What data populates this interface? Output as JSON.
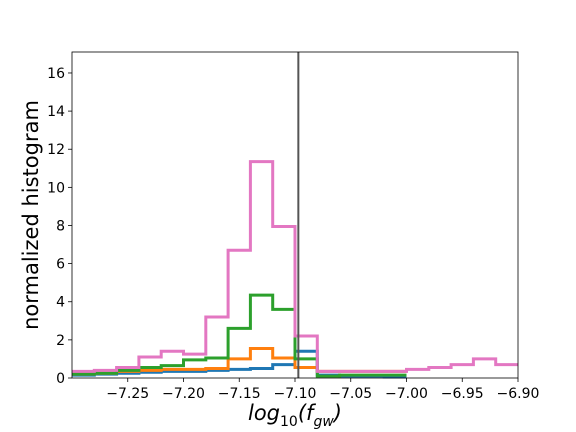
{
  "chart_data": {
    "type": "histogram-step",
    "title": "",
    "xlabel": "log",
    "xlabel_subscript": "10",
    "xlabel_argument_open": "(f",
    "xlabel_argument_subscript": "gw",
    "xlabel_argument_close": ")",
    "ylabel": "normalized histogram",
    "xlim": [
      -7.3,
      -6.9
    ],
    "ylim": [
      0,
      17.1
    ],
    "xticks": [
      -7.25,
      -7.2,
      -7.15,
      -7.1,
      -7.05,
      -7.0,
      -6.95,
      -6.9
    ],
    "xtick_labels": [
      "−7.25",
      "−7.20",
      "−7.15",
      "−7.10",
      "−7.05",
      "−7.00",
      "−6.95",
      "−6.90"
    ],
    "yticks": [
      0,
      2,
      4,
      6,
      8,
      10,
      12,
      14,
      16
    ],
    "ytick_labels": [
      "0",
      "2",
      "4",
      "6",
      "8",
      "10",
      "12",
      "14",
      "16"
    ],
    "vline": {
      "x": -7.097,
      "color": "#555555"
    },
    "grid": false,
    "legend": "none",
    "series": [
      {
        "color": "#1f77b4",
        "edges": [
          -7.3,
          -7.28,
          -7.26,
          -7.24,
          -7.22,
          -7.2,
          -7.18,
          -7.16,
          -7.14,
          -7.12,
          -7.1,
          -7.08,
          -7.06,
          -7.04,
          -7.02,
          -7.0
        ],
        "values": [
          0.15,
          0.2,
          0.25,
          0.3,
          0.35,
          0.35,
          0.4,
          0.45,
          0.5,
          0.7,
          1.4,
          0.15,
          0.1,
          0.1,
          0.05
        ]
      },
      {
        "color": "#ff7f0e",
        "edges": [
          -7.3,
          -7.28,
          -7.26,
          -7.24,
          -7.22,
          -7.2,
          -7.18,
          -7.16,
          -7.14,
          -7.12,
          -7.1,
          -7.08,
          -7.06,
          -7.04,
          -7.02,
          -7.0
        ],
        "values": [
          0.2,
          0.25,
          0.35,
          0.4,
          0.45,
          0.45,
          0.5,
          1.0,
          1.55,
          1.05,
          0.55,
          0.35,
          0.35,
          0.35,
          0.35
        ]
      },
      {
        "color": "#2ca02c",
        "edges": [
          -7.3,
          -7.28,
          -7.26,
          -7.24,
          -7.22,
          -7.2,
          -7.18,
          -7.16,
          -7.14,
          -7.12,
          -7.1,
          -7.08,
          -7.06,
          -7.04,
          -7.02,
          -7.0
        ],
        "values": [
          0.2,
          0.25,
          0.4,
          0.55,
          0.65,
          0.95,
          1.05,
          2.6,
          4.35,
          3.6,
          1.0,
          0.1,
          0.15,
          0.15,
          0.15
        ]
      },
      {
        "color": "#e377c2",
        "edges": [
          -7.3,
          -7.28,
          -7.26,
          -7.24,
          -7.22,
          -7.2,
          -7.18,
          -7.16,
          -7.14,
          -7.12,
          -7.1,
          -7.08,
          -7.06,
          -7.04,
          -7.02,
          -7.0,
          -6.98,
          -6.96,
          -6.94,
          -6.92,
          -6.9
        ],
        "values": [
          0.35,
          0.4,
          0.55,
          1.1,
          1.4,
          1.25,
          3.2,
          6.7,
          11.35,
          7.95,
          2.2,
          0.35,
          0.35,
          0.35,
          0.35,
          0.45,
          0.55,
          0.7,
          1.0,
          0.7
        ]
      }
    ]
  }
}
